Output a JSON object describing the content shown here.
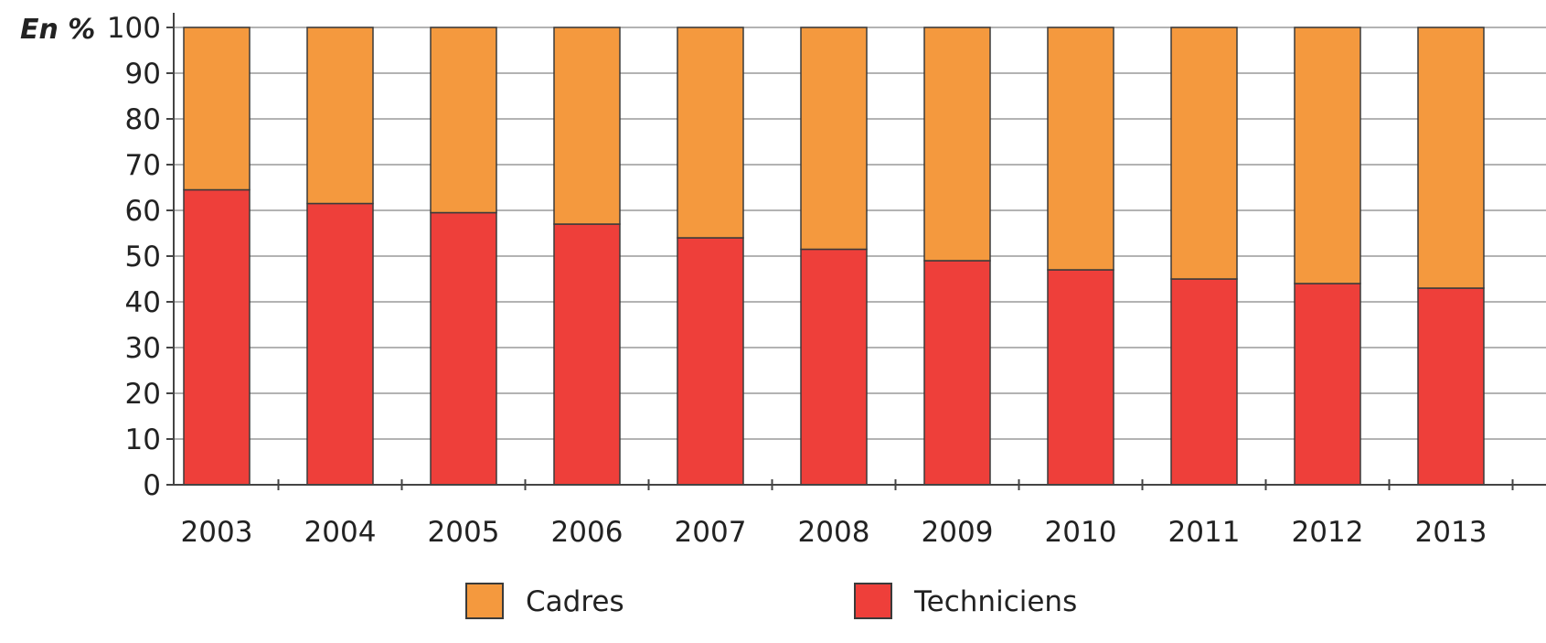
{
  "chart_data": {
    "type": "bar",
    "stacked": true,
    "ylabel": "En %",
    "ylim": [
      0,
      100
    ],
    "yticks": [
      "0",
      "10",
      "20",
      "30",
      "40",
      "50",
      "60",
      "70",
      "80",
      "90",
      "100"
    ],
    "categories": [
      "2003",
      "2004",
      "2005",
      "2006",
      "2007",
      "2008",
      "2009",
      "2010",
      "2011",
      "2012",
      "2013"
    ],
    "series": [
      {
        "name": "Techniciens",
        "color": "#ee3f3a",
        "values": [
          64.5,
          61.5,
          59.5,
          57,
          54,
          51.5,
          49,
          47,
          45,
          44,
          43
        ]
      },
      {
        "name": "Cadres",
        "color": "#f4993e",
        "values": [
          35.5,
          38.5,
          40.5,
          43,
          46,
          48.5,
          51,
          53,
          55,
          56,
          57
        ]
      }
    ],
    "grid": true,
    "legend": {
      "position": "bottom",
      "items": [
        {
          "label": "Cadres",
          "color": "#f4993e"
        },
        {
          "label": "Techniciens",
          "color": "#ee3f3a"
        }
      ]
    }
  }
}
